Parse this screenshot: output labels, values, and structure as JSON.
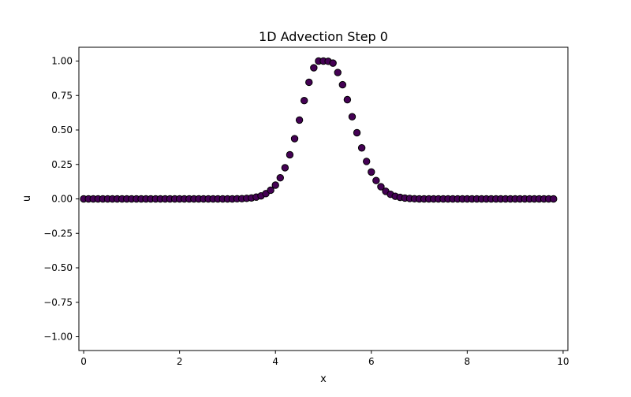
{
  "chart_data": {
    "type": "scatter",
    "title": "1D Advection Step 0",
    "xlabel": "x",
    "ylabel": "u",
    "xlim": [
      -0.1,
      10.1
    ],
    "ylim": [
      -1.1,
      1.1
    ],
    "xticks": [
      0,
      2,
      4,
      6,
      8,
      10
    ],
    "xtick_labels": [
      "0",
      "2",
      "4",
      "6",
      "8",
      "10"
    ],
    "yticks": [
      -1.0,
      -0.75,
      -0.5,
      -0.25,
      0.0,
      0.25,
      0.5,
      0.75,
      1.0
    ],
    "ytick_labels": [
      "−1.00",
      "−0.75",
      "−0.50",
      "−0.25",
      "0.00",
      "0.25",
      "0.50",
      "0.75",
      "1.00"
    ],
    "grid": false,
    "marker_color": "#440154",
    "marker_edge_color": "#000000",
    "series": [
      {
        "x": [
          0.0,
          0.1,
          0.2,
          0.3,
          0.4,
          0.5,
          0.6,
          0.7,
          0.8,
          0.9,
          1.0,
          1.1,
          1.2,
          1.3,
          1.4,
          1.5,
          1.6,
          1.7,
          1.8,
          1.9,
          2.0,
          2.1,
          2.2,
          2.3,
          2.4,
          2.5,
          2.6,
          2.7,
          2.8,
          2.9,
          3.0,
          3.1,
          3.2,
          3.3,
          3.4,
          3.5,
          3.6,
          3.7,
          3.8,
          3.9,
          4.0,
          4.1,
          4.2,
          4.3,
          4.4,
          4.5,
          4.6,
          4.7,
          4.8,
          4.9,
          5.0,
          5.1,
          5.2,
          5.3,
          5.4,
          5.5,
          5.6,
          5.7,
          5.8,
          5.9,
          6.0,
          6.1,
          6.2,
          6.3,
          6.4,
          6.5,
          6.6,
          6.7,
          6.8,
          6.9,
          7.0,
          7.1,
          7.2,
          7.3,
          7.4,
          7.5,
          7.6,
          7.7,
          7.8,
          7.9,
          8.0,
          8.1,
          8.2,
          8.3,
          8.4,
          8.5,
          8.6,
          8.7,
          8.8,
          8.9,
          9.0,
          9.1,
          9.2,
          9.3,
          9.4,
          9.5,
          9.6,
          9.7,
          9.8
        ],
        "y": [
          0.0,
          0.0,
          0.0,
          0.0,
          0.0,
          0.0,
          0.0,
          0.0,
          0.0,
          0.0,
          0.0,
          0.0,
          0.0,
          0.0,
          0.0,
          0.0,
          0.0,
          0.0,
          0.0,
          0.0,
          0.0,
          0.0,
          0.0,
          0.0,
          0.0,
          0.0,
          0.0,
          0.0,
          0.0,
          0.0,
          0.0,
          0.0,
          0.001,
          0.002,
          0.004,
          0.007,
          0.013,
          0.022,
          0.038,
          0.063,
          0.1,
          0.153,
          0.226,
          0.32,
          0.437,
          0.572,
          0.713,
          0.846,
          0.951,
          1.0,
          1.0,
          0.998,
          0.985,
          0.917,
          0.828,
          0.72,
          0.596,
          0.48,
          0.37,
          0.272,
          0.195,
          0.133,
          0.088,
          0.055,
          0.033,
          0.019,
          0.011,
          0.006,
          0.003,
          0.001,
          0.0,
          0.0,
          0.0,
          0.0,
          0.0,
          0.0,
          0.0,
          0.0,
          0.0,
          0.0,
          0.0,
          0.0,
          0.0,
          0.0,
          0.0,
          0.0,
          0.0,
          0.0,
          0.0,
          0.0,
          0.0,
          0.0,
          0.0,
          0.0,
          0.0,
          0.0,
          0.0,
          0.0,
          0.0
        ]
      }
    ]
  }
}
